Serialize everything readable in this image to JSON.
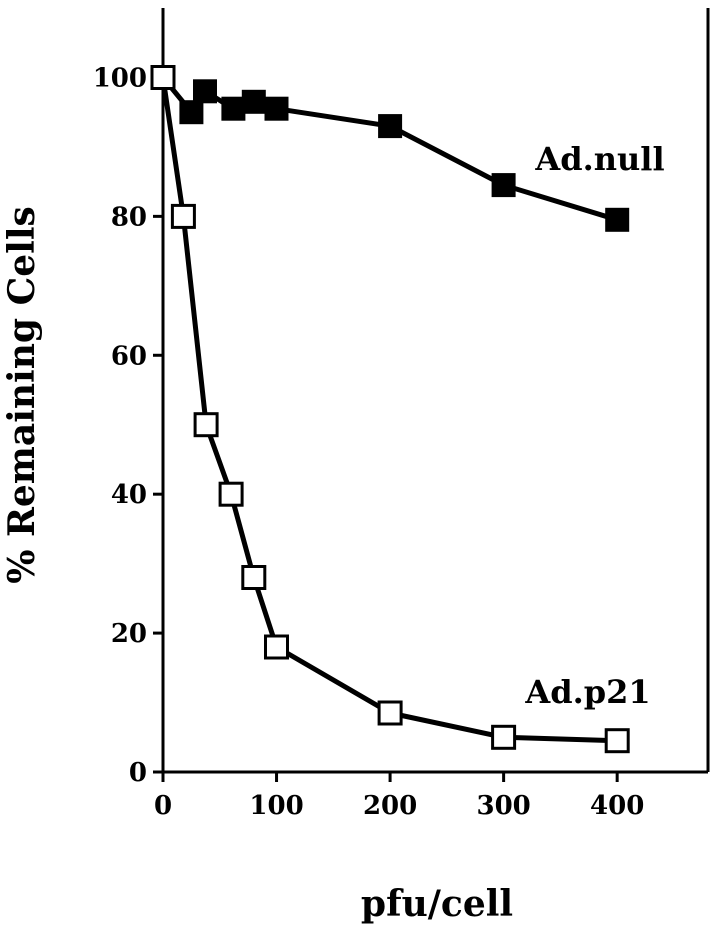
{
  "chart_data": {
    "type": "line",
    "title": "",
    "xlabel": "pfu/cell",
    "ylabel": "% Remaining Cells",
    "xlim": [
      0,
      480
    ],
    "ylim": [
      0,
      110
    ],
    "x_ticks": [
      0,
      100,
      200,
      300,
      400
    ],
    "y_ticks": [
      0,
      20,
      40,
      60,
      80,
      100
    ],
    "grid": false,
    "legend": "none",
    "series": [
      {
        "name": "Ad.null",
        "marker": "filled-square",
        "color": "#000000",
        "x": [
          0,
          25,
          37,
          62,
          80,
          100,
          200,
          300,
          400
        ],
        "y": [
          100,
          95,
          98,
          95.5,
          96.5,
          95.5,
          93,
          84.5,
          79.5
        ]
      },
      {
        "name": "Ad.p21",
        "marker": "open-square",
        "color": "#000000",
        "x": [
          0,
          18,
          38,
          60,
          80,
          100,
          200,
          300,
          400
        ],
        "y": [
          100,
          80,
          50,
          40,
          28,
          18,
          8.5,
          5,
          4.5
        ]
      }
    ]
  }
}
